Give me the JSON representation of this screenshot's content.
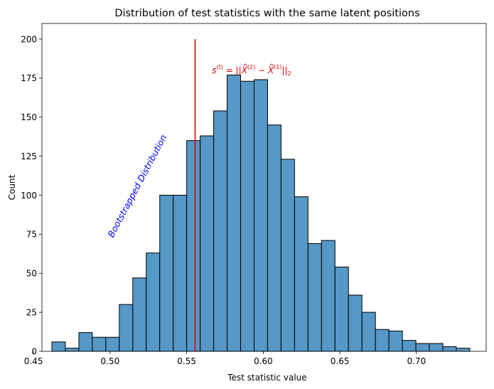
{
  "chart_data": {
    "type": "bar",
    "title": "Distribution of test statistics with the same latent positions",
    "xlabel": "Test statistic value",
    "ylabel": "Count",
    "xlim": [
      0.4555,
      0.7455
    ],
    "ylim": [
      0,
      210
    ],
    "x_ticks": [
      "0.45",
      "0.50",
      "0.55",
      "0.60",
      "0.65",
      "0.70"
    ],
    "x_tick_values": [
      0.45,
      0.5,
      0.55,
      0.6,
      0.65,
      0.7
    ],
    "y_ticks": [
      "0",
      "25",
      "50",
      "75",
      "100",
      "125",
      "150",
      "175",
      "200"
    ],
    "y_tick_values": [
      0,
      25,
      50,
      75,
      100,
      125,
      150,
      175,
      200
    ],
    "bin_edges": [
      0.462,
      0.4708,
      0.4796,
      0.4884,
      0.4972,
      0.506,
      0.5148,
      0.5236,
      0.5324,
      0.5412,
      0.55,
      0.5588,
      0.5676,
      0.5764,
      0.5852,
      0.594,
      0.6028,
      0.6116,
      0.6204,
      0.6292,
      0.638,
      0.6468,
      0.6556,
      0.6644,
      0.6732,
      0.682,
      0.6908,
      0.6996,
      0.7084,
      0.7172,
      0.726,
      0.7348
    ],
    "counts": [
      6,
      2,
      12,
      9,
      9,
      30,
      47,
      63,
      100,
      100,
      135,
      138,
      154,
      177,
      173,
      174,
      145,
      123,
      99,
      69,
      71,
      54,
      36,
      25,
      14,
      13,
      7,
      5,
      5,
      3,
      2
    ],
    "bar_color": "#5698c6",
    "observed_statistic": {
      "x": 0.5555,
      "y_range": [
        0,
        200
      ],
      "color": "#e00000"
    },
    "annotations": [
      {
        "id": "bootstrap",
        "text": "Bootstrapped Distribution",
        "color": "#0000ff",
        "x": 0.5195,
        "y": 105,
        "rotation": -62
      },
      {
        "id": "statistic",
        "color": "#e00000",
        "x": 0.5665,
        "y": 180,
        "s": "s",
        "sup_t": "(t)",
        "eq": " = ||",
        "xhat": "X",
        "sup_2": "(2)",
        "minus": " − ",
        "sup_1": "(1)",
        "bars": "||",
        "sub_2": "2"
      }
    ],
    "legend": "none",
    "grid": false
  }
}
